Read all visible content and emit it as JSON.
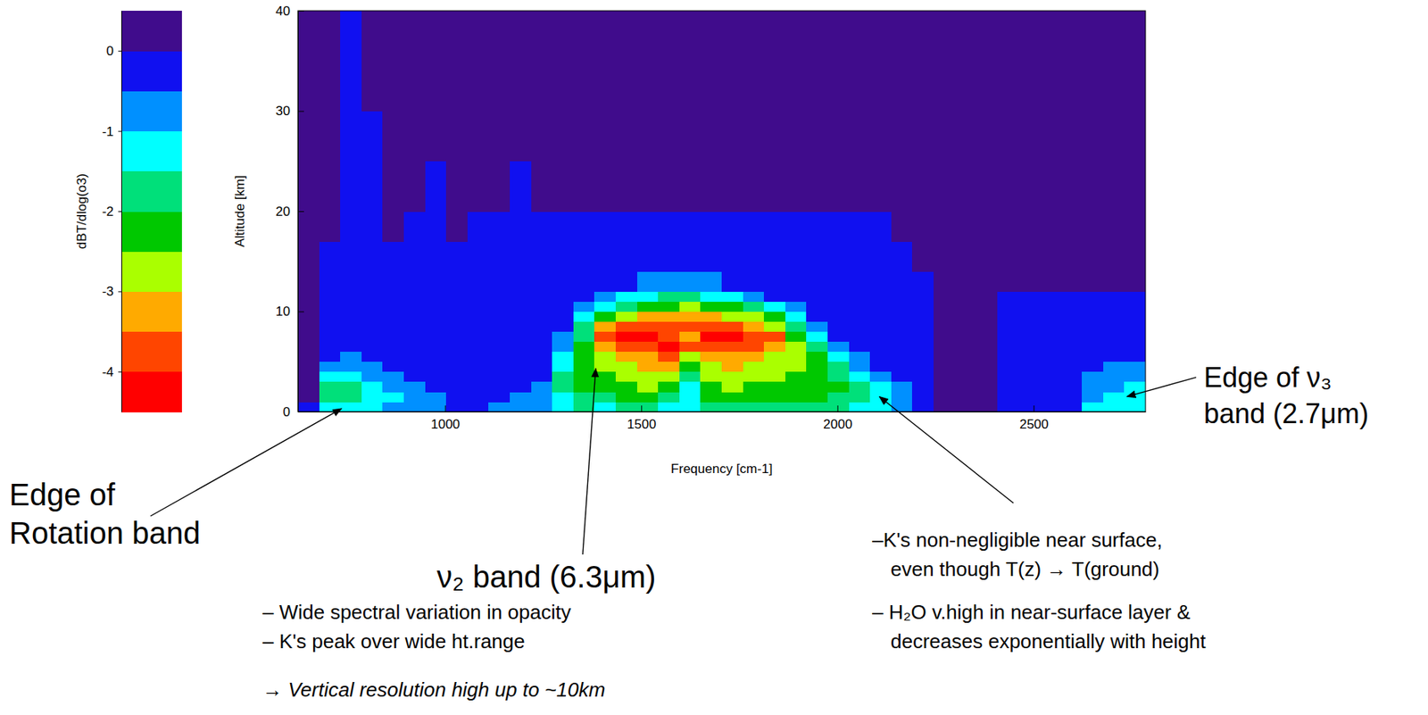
{
  "chart_data": {
    "type": "heatmap",
    "x_label": "Frequency [cm-1]",
    "y_label": "Altitude [km]",
    "xlim": [
      625,
      2785
    ],
    "xticks": [
      1000,
      1500,
      2000,
      2500
    ],
    "ylim": [
      0,
      40
    ],
    "yticks": [
      0,
      10,
      20,
      30,
      40
    ],
    "x_edges": [
      625,
      679,
      733,
      787,
      841,
      895,
      949,
      1003,
      1057,
      1111,
      1165,
      1219,
      1273,
      1327,
      1381,
      1435,
      1489,
      1543,
      1597,
      1651,
      1705,
      1759,
      1813,
      1867,
      1921,
      1975,
      2029,
      2083,
      2137,
      2191,
      2245,
      2299,
      2353,
      2407,
      2461,
      2515,
      2569,
      2623,
      2677,
      2731,
      2785
    ],
    "y_edges": [
      0,
      1,
      2,
      3,
      4,
      5,
      6,
      7,
      8,
      9,
      10,
      11,
      12,
      14,
      17,
      20,
      25,
      30,
      35,
      40
    ],
    "cells": [
      [
        -0.3,
        -1.2,
        -1.2,
        -1.2,
        -0.7,
        -0.7,
        -0.7,
        -0.3,
        -0.3,
        -0.7,
        -0.7,
        -0.7,
        -1.2,
        -1.7,
        -1.2,
        -1.7,
        -1.7,
        -1.2,
        -1.2,
        -1.7,
        -1.7,
        -1.7,
        -1.7,
        -1.7,
        -1.7,
        -1.7,
        -1.2,
        -1.2,
        -0.7,
        -0.3,
        0,
        0,
        0,
        -0.3,
        -0.3,
        -0.3,
        -0.3,
        -1.2,
        -1.2,
        -1.2
      ],
      [
        0,
        -1.7,
        -1.7,
        -1.2,
        -1.2,
        -0.7,
        -0.7,
        -0.3,
        -0.3,
        -0.3,
        -0.7,
        -0.7,
        -1.2,
        -1.7,
        -1.7,
        -2.2,
        -2.2,
        -1.7,
        -1.2,
        -2.2,
        -2.2,
        -2.2,
        -2.2,
        -2.2,
        -2.2,
        -1.7,
        -1.7,
        -1.2,
        -0.7,
        -0.3,
        0,
        0,
        0,
        -0.3,
        -0.3,
        -0.3,
        -0.3,
        -0.7,
        -1.2,
        -1.2
      ],
      [
        0,
        -1.7,
        -1.7,
        -1.2,
        -0.7,
        -0.7,
        -0.3,
        -0.3,
        -0.3,
        -0.3,
        -0.3,
        -0.7,
        -1.7,
        -2.2,
        -2.2,
        -2.2,
        -2.7,
        -2.2,
        -1.2,
        -2.2,
        -2.7,
        -2.2,
        -2.2,
        -2.2,
        -2.2,
        -2.2,
        -1.7,
        -1.2,
        -0.7,
        -0.3,
        0,
        0,
        0,
        -0.3,
        -0.3,
        -0.3,
        -0.3,
        -0.7,
        -0.7,
        -1.2
      ],
      [
        0,
        -1.2,
        -1.2,
        -0.7,
        -0.7,
        -0.3,
        -0.3,
        -0.3,
        -0.3,
        -0.3,
        -0.3,
        -0.3,
        -1.7,
        -2.2,
        -2.2,
        -2.7,
        -2.7,
        -2.7,
        -1.7,
        -2.7,
        -2.7,
        -2.7,
        -2.7,
        -2.2,
        -2.2,
        -1.7,
        -1.2,
        -0.7,
        -0.3,
        -0.3,
        0,
        0,
        0,
        -0.3,
        -0.3,
        -0.3,
        -0.3,
        -0.7,
        -0.7,
        -0.7
      ],
      [
        0,
        -0.7,
        -0.7,
        -0.7,
        -0.3,
        -0.3,
        -0.3,
        -0.3,
        -0.3,
        -0.3,
        -0.3,
        -0.3,
        -1.2,
        -2.2,
        -2.7,
        -2.7,
        -3.2,
        -3.2,
        -2.2,
        -2.7,
        -3.2,
        -2.7,
        -2.7,
        -2.7,
        -2.2,
        -1.7,
        -0.7,
        -0.3,
        -0.3,
        -0.3,
        0,
        0,
        0,
        -0.3,
        -0.3,
        -0.3,
        -0.3,
        -0.3,
        -0.7,
        -0.7
      ],
      [
        0,
        -0.3,
        -0.7,
        -0.3,
        -0.3,
        -0.3,
        -0.3,
        -0.3,
        -0.3,
        -0.3,
        -0.3,
        -0.3,
        -1.2,
        -2.2,
        -2.7,
        -3.2,
        -3.2,
        -3.7,
        -2.7,
        -3.2,
        -3.2,
        -3.2,
        -2.7,
        -2.7,
        -2.2,
        -1.2,
        -0.7,
        -0.3,
        -0.3,
        -0.3,
        0,
        0,
        0,
        -0.3,
        -0.3,
        -0.3,
        -0.3,
        -0.3,
        -0.3,
        -0.3
      ],
      [
        0,
        -0.3,
        -0.3,
        -0.3,
        -0.3,
        -0.3,
        -0.3,
        -0.3,
        -0.3,
        -0.3,
        -0.3,
        -0.3,
        -0.7,
        -2.2,
        -3.2,
        -3.7,
        -3.7,
        -4.2,
        -3.7,
        -3.7,
        -3.7,
        -3.7,
        -3.2,
        -2.7,
        -1.7,
        -0.7,
        -0.3,
        -0.3,
        -0.3,
        -0.3,
        0,
        0,
        0,
        -0.3,
        -0.3,
        -0.3,
        -0.3,
        -0.3,
        -0.3,
        -0.3
      ],
      [
        0,
        -0.3,
        -0.3,
        -0.3,
        -0.3,
        -0.3,
        -0.3,
        -0.3,
        -0.3,
        -0.3,
        -0.3,
        -0.3,
        -0.7,
        -1.7,
        -3.7,
        -4.2,
        -4.2,
        -3.7,
        -3.2,
        -4.2,
        -4.2,
        -3.7,
        -3.7,
        -2.2,
        -1.2,
        -0.3,
        -0.3,
        -0.3,
        -0.3,
        -0.3,
        0,
        0,
        0,
        -0.3,
        -0.3,
        -0.3,
        -0.3,
        -0.3,
        -0.3,
        -0.3
      ],
      [
        0,
        -0.3,
        -0.3,
        -0.3,
        -0.3,
        -0.3,
        -0.3,
        -0.3,
        -0.3,
        -0.3,
        -0.3,
        -0.3,
        -0.3,
        -1.7,
        -3.2,
        -3.7,
        -3.7,
        -3.7,
        -3.7,
        -3.7,
        -3.7,
        -3.2,
        -2.7,
        -1.7,
        -0.7,
        -0.3,
        -0.3,
        -0.3,
        -0.3,
        -0.3,
        0,
        0,
        0,
        -0.3,
        -0.3,
        -0.3,
        -0.3,
        -0.3,
        -0.3,
        -0.3
      ],
      [
        0,
        -0.3,
        -0.3,
        -0.3,
        -0.3,
        -0.3,
        -0.3,
        -0.3,
        -0.3,
        -0.3,
        -0.3,
        -0.3,
        -0.3,
        -1.2,
        -2.2,
        -2.7,
        -3.2,
        -3.2,
        -3.2,
        -3.2,
        -2.7,
        -2.7,
        -2.2,
        -1.2,
        -0.3,
        -0.3,
        -0.3,
        -0.3,
        -0.3,
        -0.3,
        0,
        0,
        0,
        -0.3,
        -0.3,
        -0.3,
        -0.3,
        -0.3,
        -0.3,
        -0.3
      ],
      [
        0,
        -0.3,
        -0.3,
        -0.3,
        -0.3,
        -0.3,
        -0.3,
        -0.3,
        -0.3,
        -0.3,
        -0.3,
        -0.3,
        -0.3,
        -0.7,
        -1.2,
        -1.7,
        -2.2,
        -2.2,
        -2.7,
        -2.2,
        -2.2,
        -1.7,
        -1.2,
        -0.7,
        -0.3,
        -0.3,
        -0.3,
        -0.3,
        -0.3,
        -0.3,
        0,
        0,
        0,
        -0.3,
        -0.3,
        -0.3,
        -0.3,
        -0.3,
        -0.3,
        -0.3
      ],
      [
        0,
        -0.3,
        -0.3,
        -0.3,
        -0.3,
        -0.3,
        -0.3,
        -0.3,
        -0.3,
        -0.3,
        -0.3,
        -0.3,
        -0.3,
        -0.3,
        -0.7,
        -1.2,
        -1.2,
        -1.7,
        -1.7,
        -1.2,
        -1.2,
        -0.7,
        -0.3,
        -0.3,
        -0.3,
        -0.3,
        -0.3,
        -0.3,
        -0.3,
        -0.3,
        0,
        0,
        0,
        -0.3,
        -0.3,
        -0.3,
        -0.3,
        -0.3,
        -0.3,
        -0.3
      ],
      [
        0,
        -0.3,
        -0.3,
        -0.3,
        -0.3,
        -0.3,
        -0.3,
        -0.3,
        -0.3,
        -0.3,
        -0.3,
        -0.3,
        -0.3,
        -0.3,
        -0.3,
        -0.3,
        -0.7,
        -0.7,
        -0.7,
        -0.7,
        -0.3,
        -0.3,
        -0.3,
        -0.3,
        -0.3,
        -0.3,
        -0.3,
        -0.3,
        -0.3,
        -0.3,
        0,
        0,
        0,
        0,
        0,
        0,
        0,
        0,
        0,
        0
      ],
      [
        0,
        -0.3,
        -0.3,
        -0.3,
        -0.3,
        -0.3,
        -0.3,
        -0.3,
        -0.3,
        -0.3,
        -0.3,
        -0.3,
        -0.3,
        -0.3,
        -0.3,
        -0.3,
        -0.3,
        -0.3,
        -0.3,
        -0.3,
        -0.3,
        -0.3,
        -0.3,
        -0.3,
        -0.3,
        -0.3,
        -0.3,
        -0.3,
        -0.3,
        0,
        0,
        0,
        0,
        0,
        0,
        0,
        0,
        0,
        0,
        0
      ],
      [
        0,
        0,
        -0.3,
        -0.3,
        0,
        -0.3,
        -0.3,
        0,
        -0.3,
        -0.3,
        -0.3,
        -0.3,
        -0.3,
        -0.3,
        -0.3,
        -0.3,
        -0.3,
        -0.3,
        -0.3,
        -0.3,
        -0.3,
        -0.3,
        -0.3,
        -0.3,
        -0.3,
        -0.3,
        -0.3,
        -0.3,
        0,
        0,
        0,
        0,
        0,
        0,
        0,
        0,
        0,
        0,
        0,
        0
      ],
      [
        0,
        0,
        -0.3,
        -0.3,
        0,
        0,
        -0.3,
        0,
        0,
        0,
        -0.3,
        0,
        0,
        0,
        0,
        0,
        0,
        0,
        0,
        0,
        0,
        0,
        0,
        0,
        0,
        0,
        0,
        0,
        0,
        0,
        0,
        0,
        0,
        0,
        0,
        0,
        0,
        0,
        0,
        0
      ],
      [
        0,
        0,
        -0.3,
        -0.3,
        0,
        0,
        0,
        0,
        0,
        0,
        0,
        0,
        0,
        0,
        0,
        0,
        0,
        0,
        0,
        0,
        0,
        0,
        0,
        0,
        0,
        0,
        0,
        0,
        0,
        0,
        0,
        0,
        0,
        0,
        0,
        0,
        0,
        0,
        0,
        0
      ],
      [
        0,
        0,
        -0.3,
        0,
        0,
        0,
        0,
        0,
        0,
        0,
        0,
        0,
        0,
        0,
        0,
        0,
        0,
        0,
        0,
        0,
        0,
        0,
        0,
        0,
        0,
        0,
        0,
        0,
        0,
        0,
        0,
        0,
        0,
        0,
        0,
        0,
        0,
        0,
        0,
        0
      ],
      [
        0,
        0,
        -0.3,
        0,
        0,
        0,
        0,
        0,
        0,
        0,
        0,
        0,
        0,
        0,
        0,
        0,
        0,
        0,
        0,
        0,
        0,
        0,
        0,
        0,
        0,
        0,
        0,
        0,
        0,
        0,
        0,
        0,
        0,
        0,
        0,
        0,
        0,
        0,
        0,
        0
      ]
    ],
    "colorbar": {
      "label": "dBT/dlog(o3)",
      "lim": [
        -4.5,
        0.5
      ],
      "ticks": [
        0,
        -1,
        -2,
        -3,
        -4
      ],
      "colors": [
        "#ff0000",
        "#ff4500",
        "#ffaa00",
        "#aaff00",
        "#00c800",
        "#00e07a",
        "#00ffff",
        "#0090ff",
        "#1010f0",
        "#400c8c"
      ]
    },
    "annotations": [
      {
        "text": [
          "Edge of",
          "Rotation band"
        ],
        "xy": [
          736,
          0.3
        ]
      },
      {
        "text": [
          "ν₂ band (6.3μm)"
        ],
        "xy": [
          1384,
          4.3
        ]
      },
      {
        "text": [
          "– Wide spectral variation in opacity",
          "– K's peak over wide ht.range",
          "→ Vertical resolution high up to ~10km"
        ]
      },
      {
        "text": [
          "–K's non-negligible near surface,",
          "even though T(z) → T(ground)",
          "– H₂O v.high in near-surface layer &",
          "decreases exponentially with height"
        ],
        "xy": [
          2107,
          1.5
        ]
      },
      {
        "text": [
          "Edge of  ν₃",
          "band (2.7μm)"
        ],
        "xy": [
          2738,
          1.5
        ]
      }
    ]
  }
}
